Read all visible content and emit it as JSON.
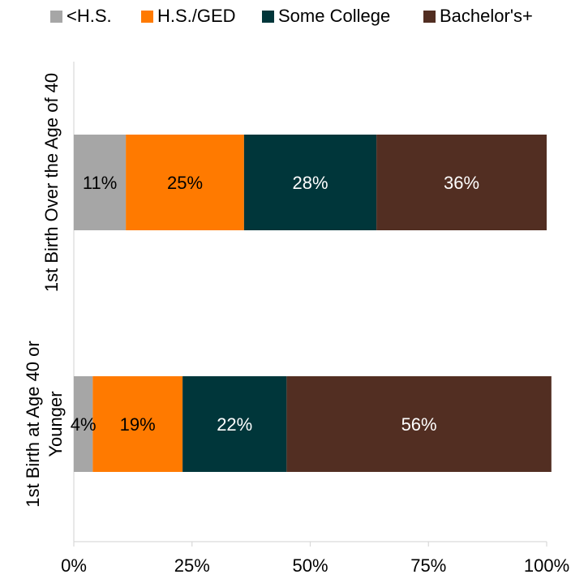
{
  "chart_data": {
    "type": "bar",
    "orientation": "horizontal",
    "stacked": true,
    "legend_position": "top",
    "categories": [
      "1st Birth Over the Age of 40",
      "1st Birth at Age 40 or Younger"
    ],
    "category_label_lines": [
      [
        "1st Birth Over the Age of 40"
      ],
      [
        "1st Birth at Age 40 or",
        "Younger"
      ]
    ],
    "series": [
      {
        "name": "<H.S.",
        "values": [
          11,
          4
        ],
        "labels": [
          "11%",
          "4%"
        ],
        "color": "#A6A6A6",
        "label_color": "#000000"
      },
      {
        "name": "H.S./GED",
        "values": [
          25,
          19
        ],
        "labels": [
          "25%",
          "19%"
        ],
        "color": "#FF7A00",
        "label_color": "#000000"
      },
      {
        "name": "Some College",
        "values": [
          28,
          22
        ],
        "labels": [
          "28%",
          "22%"
        ],
        "color": "#00363A",
        "label_color": "#FFFFFF"
      },
      {
        "name": "Bachelor's+",
        "values": [
          36,
          56
        ],
        "labels": [
          "36%",
          "56%"
        ],
        "color": "#522E22",
        "label_color": "#FFFFFF"
      }
    ],
    "xlim": [
      0,
      100
    ],
    "x_ticks": [
      0,
      25,
      50,
      75,
      100
    ],
    "x_tick_labels": [
      "0%",
      "25%",
      "50%",
      "75%",
      "100%"
    ],
    "grid": false,
    "title": "",
    "xlabel": "",
    "ylabel": ""
  }
}
